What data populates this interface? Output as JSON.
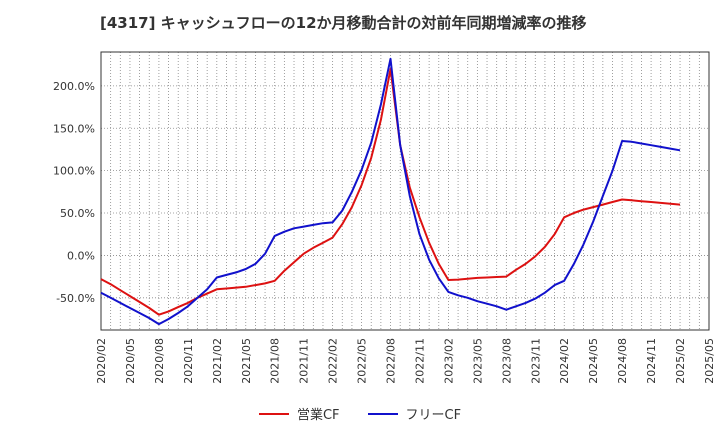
{
  "title": "[4317]  キャッシュフローの12か月移動合計の対前年同期増減率の推移",
  "chart_data": {
    "type": "line",
    "x": [
      "2020/02",
      "2020/05",
      "2020/08",
      "2020/11",
      "2021/02",
      "2021/05",
      "2021/08",
      "2021/11",
      "2022/02",
      "2022/05",
      "2022/08",
      "2022/11",
      "2023/02",
      "2023/05",
      "2023/08",
      "2023/11",
      "2024/02",
      "2024/05",
      "2024/08",
      "2024/11",
      "2025/02",
      "2025/05"
    ],
    "ylim": [
      -0.88,
      2.4
    ],
    "yticks": [
      -0.5,
      0,
      0.5,
      1.0,
      1.5,
      2.0
    ],
    "ytick_labels": [
      "-50.0%",
      "0.0%",
      "50.0%",
      "100.0%",
      "150.0%",
      "200.0%"
    ],
    "grid": true,
    "legend_position": "bottom",
    "series": [
      {
        "name": "営業CF",
        "color": "#dd1111",
        "points": [
          [
            "2020/02",
            -0.28
          ],
          [
            "2020/03",
            -0.34
          ],
          [
            "2020/04",
            -0.41
          ],
          [
            "2020/05",
            -0.48
          ],
          [
            "2020/06",
            -0.55
          ],
          [
            "2020/07",
            -0.62
          ],
          [
            "2020/08",
            -0.7
          ],
          [
            "2020/09",
            -0.66
          ],
          [
            "2020/10",
            -0.61
          ],
          [
            "2020/11",
            -0.56
          ],
          [
            "2020/12",
            -0.5
          ],
          [
            "2021/01",
            -0.45
          ],
          [
            "2021/02",
            -0.4
          ],
          [
            "2021/03",
            -0.39
          ],
          [
            "2021/04",
            -0.38
          ],
          [
            "2021/05",
            -0.37
          ],
          [
            "2021/06",
            -0.35
          ],
          [
            "2021/07",
            -0.33
          ],
          [
            "2021/08",
            -0.3
          ],
          [
            "2021/09",
            -0.18
          ],
          [
            "2021/10",
            -0.08
          ],
          [
            "2021/11",
            0.02
          ],
          [
            "2021/12",
            0.09
          ],
          [
            "2022/01",
            0.15
          ],
          [
            "2022/02",
            0.21
          ],
          [
            "2022/03",
            0.37
          ],
          [
            "2022/04",
            0.57
          ],
          [
            "2022/05",
            0.83
          ],
          [
            "2022/06",
            1.15
          ],
          [
            "2022/07",
            1.6
          ],
          [
            "2022/08",
            2.2
          ],
          [
            "2022/09",
            1.3
          ],
          [
            "2022/10",
            0.8
          ],
          [
            "2022/11",
            0.45
          ],
          [
            "2022/12",
            0.15
          ],
          [
            "2023/01",
            -0.1
          ],
          [
            "2023/02",
            -0.29
          ],
          [
            "2023/03",
            -0.285
          ],
          [
            "2023/04",
            -0.275
          ],
          [
            "2023/05",
            -0.265
          ],
          [
            "2023/06",
            -0.26
          ],
          [
            "2023/07",
            -0.255
          ],
          [
            "2023/08",
            -0.25
          ],
          [
            "2023/09",
            -0.17
          ],
          [
            "2023/10",
            -0.1
          ],
          [
            "2023/11",
            -0.01
          ],
          [
            "2023/12",
            0.1
          ],
          [
            "2024/01",
            0.25
          ],
          [
            "2024/02",
            0.45
          ],
          [
            "2024/03",
            0.5
          ],
          [
            "2024/04",
            0.54
          ],
          [
            "2024/05",
            0.57
          ],
          [
            "2024/06",
            0.6
          ],
          [
            "2024/07",
            0.63
          ],
          [
            "2024/08",
            0.66
          ],
          [
            "2024/09",
            0.65
          ],
          [
            "2024/10",
            0.64
          ],
          [
            "2024/11",
            0.63
          ],
          [
            "2024/12",
            0.62
          ],
          [
            "2025/01",
            0.61
          ],
          [
            "2025/02",
            0.6
          ]
        ]
      },
      {
        "name": "フリーCF",
        "color": "#1111cc",
        "points": [
          [
            "2020/02",
            -0.44
          ],
          [
            "2020/03",
            -0.5
          ],
          [
            "2020/04",
            -0.56
          ],
          [
            "2020/05",
            -0.62
          ],
          [
            "2020/06",
            -0.68
          ],
          [
            "2020/07",
            -0.74
          ],
          [
            "2020/08",
            -0.81
          ],
          [
            "2020/09",
            -0.75
          ],
          [
            "2020/10",
            -0.68
          ],
          [
            "2020/11",
            -0.6
          ],
          [
            "2020/12",
            -0.5
          ],
          [
            "2021/01",
            -0.4
          ],
          [
            "2021/02",
            -0.26
          ],
          [
            "2021/03",
            -0.23
          ],
          [
            "2021/04",
            -0.2
          ],
          [
            "2021/05",
            -0.16
          ],
          [
            "2021/06",
            -0.1
          ],
          [
            "2021/07",
            0.02
          ],
          [
            "2021/08",
            0.23
          ],
          [
            "2021/09",
            0.28
          ],
          [
            "2021/10",
            0.32
          ],
          [
            "2021/11",
            0.34
          ],
          [
            "2021/12",
            0.36
          ],
          [
            "2022/01",
            0.38
          ],
          [
            "2022/02",
            0.39
          ],
          [
            "2022/03",
            0.53
          ],
          [
            "2022/04",
            0.75
          ],
          [
            "2022/05",
            1.01
          ],
          [
            "2022/06",
            1.33
          ],
          [
            "2022/07",
            1.78
          ],
          [
            "2022/08",
            2.32
          ],
          [
            "2022/09",
            1.3
          ],
          [
            "2022/10",
            0.7
          ],
          [
            "2022/11",
            0.25
          ],
          [
            "2022/12",
            -0.05
          ],
          [
            "2023/01",
            -0.27
          ],
          [
            "2023/02",
            -0.43
          ],
          [
            "2023/03",
            -0.47
          ],
          [
            "2023/04",
            -0.5
          ],
          [
            "2023/05",
            -0.54
          ],
          [
            "2023/06",
            -0.57
          ],
          [
            "2023/07",
            -0.6
          ],
          [
            "2023/08",
            -0.64
          ],
          [
            "2023/09",
            -0.6
          ],
          [
            "2023/10",
            -0.56
          ],
          [
            "2023/11",
            -0.51
          ],
          [
            "2023/12",
            -0.44
          ],
          [
            "2024/01",
            -0.35
          ],
          [
            "2024/02",
            -0.3
          ],
          [
            "2024/03",
            -0.1
          ],
          [
            "2024/04",
            0.13
          ],
          [
            "2024/05",
            0.4
          ],
          [
            "2024/06",
            0.7
          ],
          [
            "2024/07",
            1.0
          ],
          [
            "2024/08",
            1.35
          ],
          [
            "2024/09",
            1.34
          ],
          [
            "2024/10",
            1.32
          ],
          [
            "2024/11",
            1.3
          ],
          [
            "2024/12",
            1.28
          ],
          [
            "2025/01",
            1.26
          ],
          [
            "2025/02",
            1.24
          ]
        ]
      }
    ]
  }
}
